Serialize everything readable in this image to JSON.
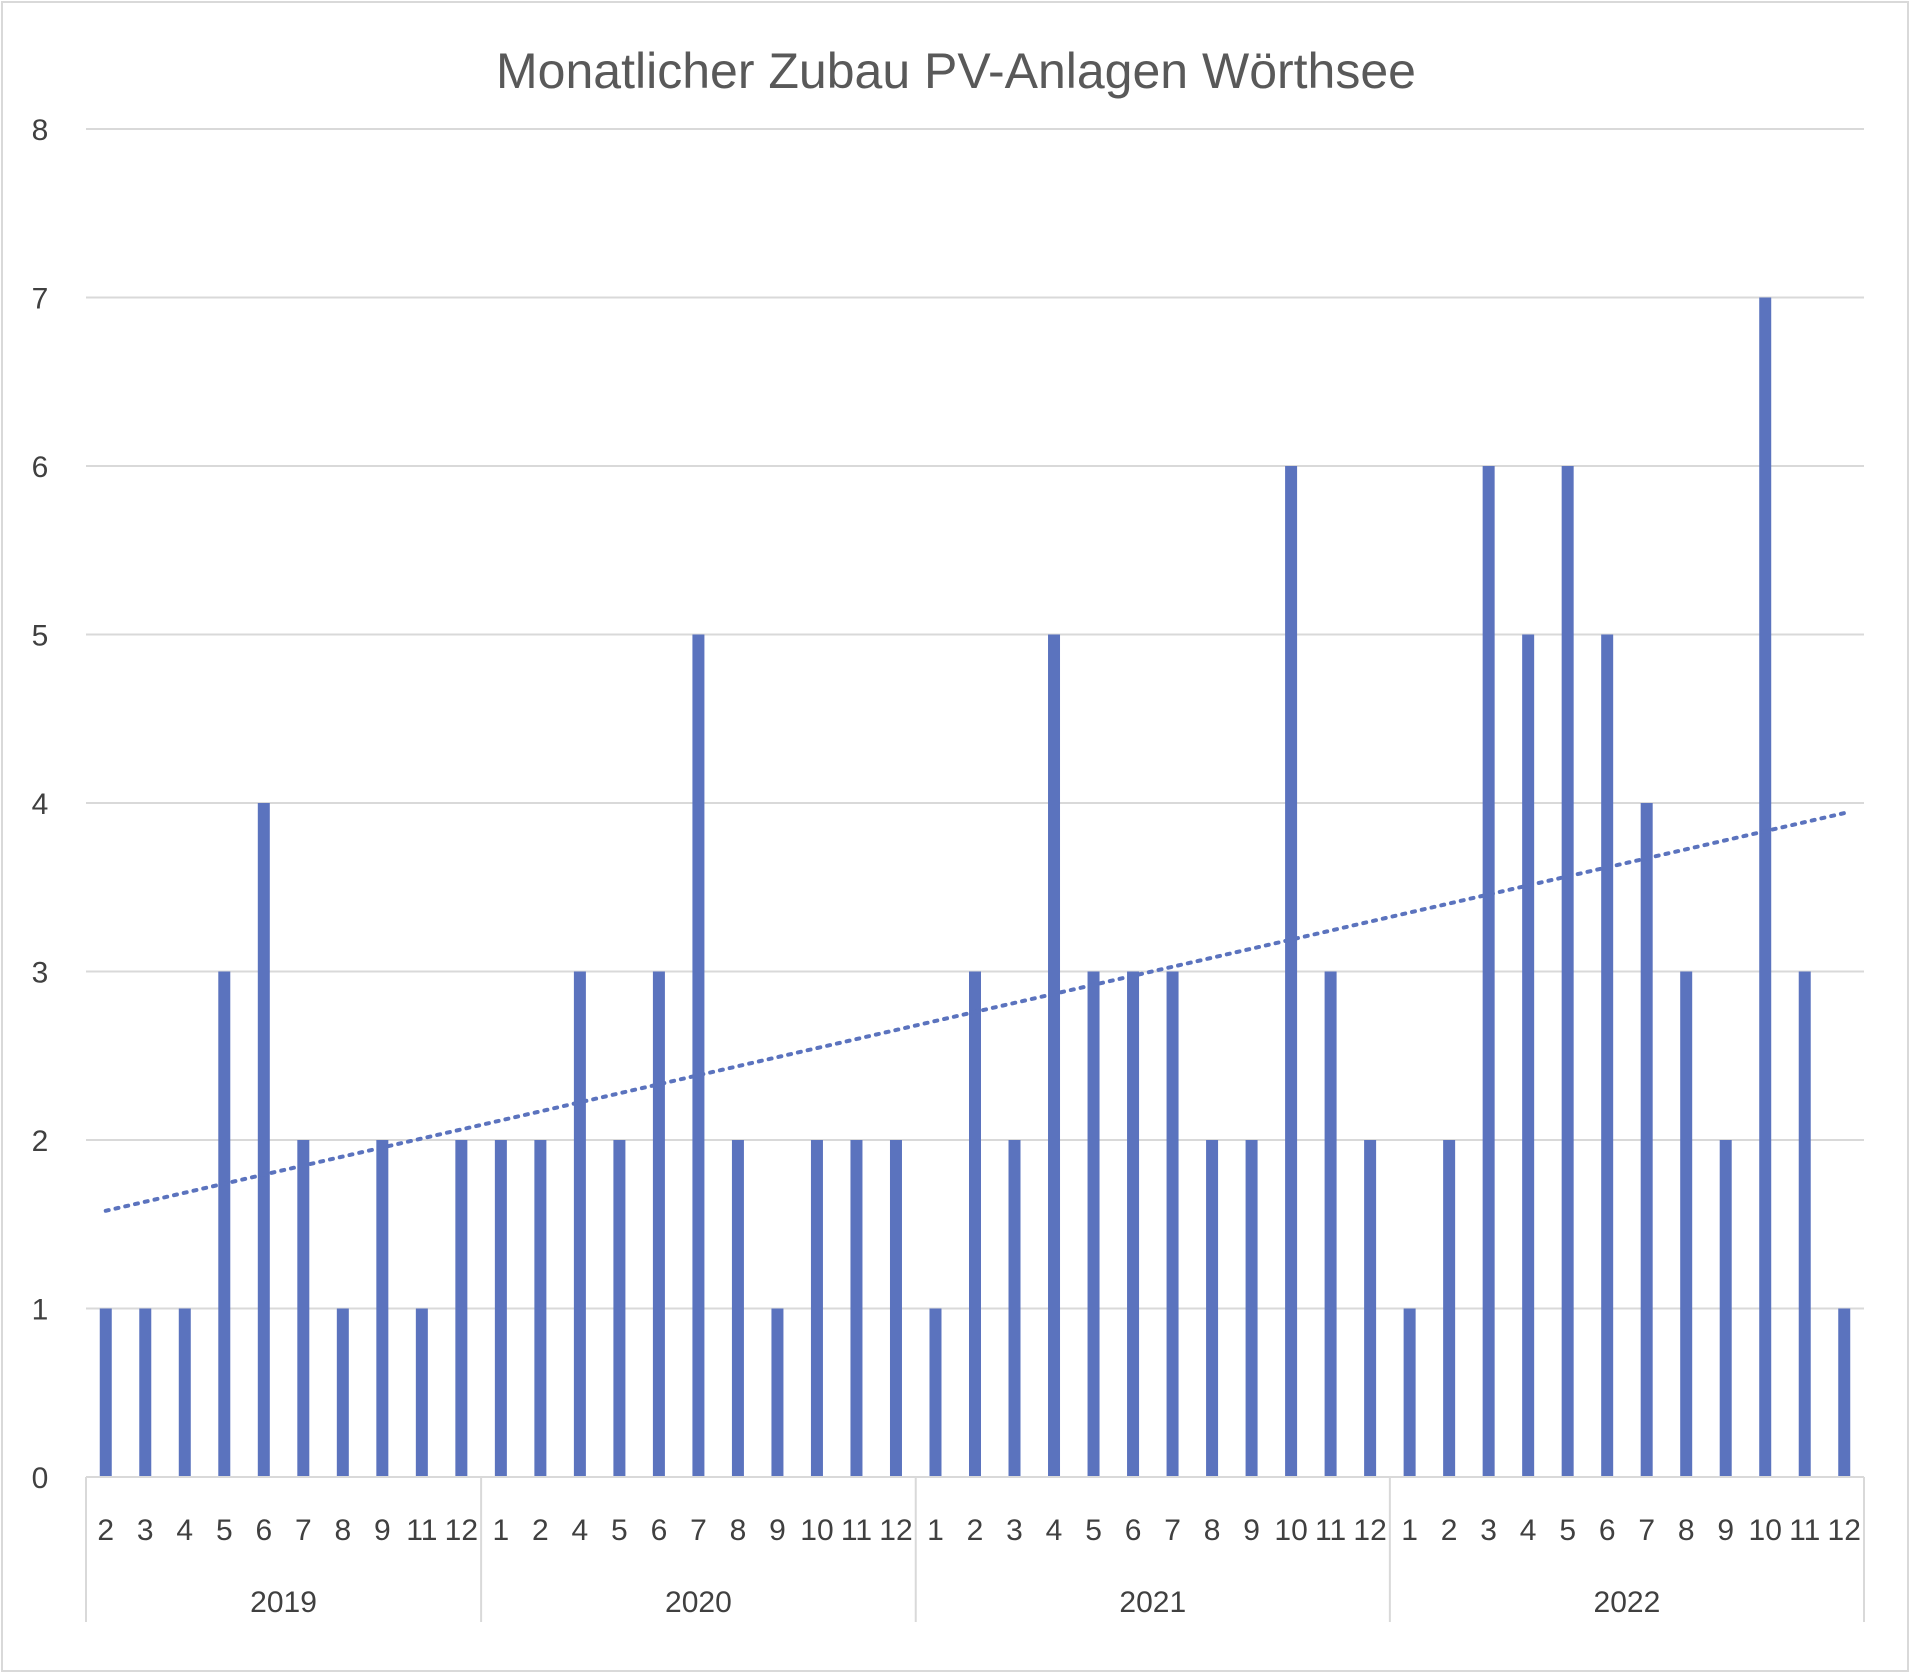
{
  "chart_data": {
    "type": "bar",
    "title": "Monatlicher Zubau PV-Anlagen Wörthsee",
    "xlabel": "",
    "ylabel": "",
    "ylim": [
      0,
      8
    ],
    "yticks": [
      "0",
      "1",
      "2",
      "3",
      "4",
      "5",
      "6",
      "7",
      "8"
    ],
    "grid": true,
    "legend": "none",
    "bar_color": "#5B73BE",
    "trendline": {
      "type": "linear",
      "style": "dotted",
      "color": "#5B73BE",
      "start": 1.58,
      "end": 3.94
    },
    "groups": [
      {
        "year": "2019",
        "months": [
          "2",
          "3",
          "4",
          "5",
          "6",
          "7",
          "8",
          "9",
          "11",
          "12"
        ],
        "values": [
          1,
          1,
          1,
          3,
          4,
          2,
          1,
          2,
          1,
          2
        ]
      },
      {
        "year": "2020",
        "months": [
          "1",
          "2",
          "4",
          "5",
          "6",
          "7",
          "8",
          "9",
          "10",
          "11",
          "12"
        ],
        "values": [
          2,
          2,
          3,
          2,
          3,
          5,
          2,
          1,
          2,
          2,
          2
        ]
      },
      {
        "year": "2021",
        "months": [
          "1",
          "2",
          "3",
          "4",
          "5",
          "6",
          "7",
          "8",
          "9",
          "10",
          "11",
          "12"
        ],
        "values": [
          1,
          3,
          2,
          5,
          3,
          3,
          3,
          2,
          2,
          6,
          3,
          2
        ]
      },
      {
        "year": "2022",
        "months": [
          "1",
          "2",
          "3",
          "4",
          "5",
          "6",
          "7",
          "8",
          "9",
          "10",
          "11",
          "12"
        ],
        "values": [
          1,
          2,
          6,
          5,
          6,
          5,
          4,
          3,
          2,
          7,
          3,
          1
        ]
      }
    ]
  }
}
